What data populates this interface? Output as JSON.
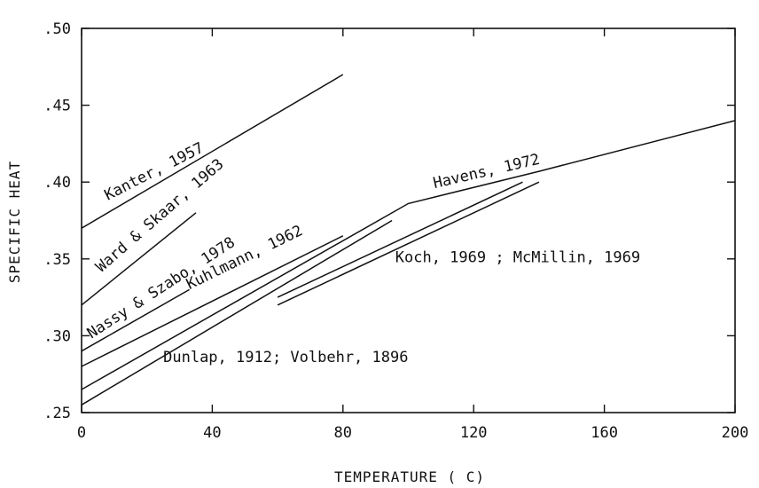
{
  "chart_data": {
    "type": "line",
    "title": "",
    "xlabel": "TEMPERATURE ( C)",
    "ylabel": "SPECIFIC HEAT",
    "xlim": [
      0,
      200
    ],
    "ylim": [
      0.25,
      0.5
    ],
    "x_ticks": [
      {
        "value": 0,
        "label": "0"
      },
      {
        "value": 40,
        "label": "40"
      },
      {
        "value": 80,
        "label": "80"
      },
      {
        "value": 120,
        "label": "120"
      },
      {
        "value": 160,
        "label": "160"
      },
      {
        "value": 200,
        "label": "200"
      }
    ],
    "y_ticks": [
      {
        "value": 0.25,
        "label": ".25"
      },
      {
        "value": 0.3,
        "label": ".30"
      },
      {
        "value": 0.35,
        "label": ".35"
      },
      {
        "value": 0.4,
        "label": ".40"
      },
      {
        "value": 0.45,
        "label": ".45"
      },
      {
        "value": 0.5,
        "label": ".50"
      }
    ],
    "grid": false,
    "legend": "none",
    "line_color": "#111111",
    "series": [
      {
        "name": "Kanter, 1957",
        "x": [
          0,
          80
        ],
        "y": [
          0.37,
          0.47
        ]
      },
      {
        "name": "Ward & Skaar, 1963",
        "x": [
          0,
          35
        ],
        "y": [
          0.32,
          0.38
        ]
      },
      {
        "name": "Nassy & Szabo, 1978",
        "x": [
          0,
          33
        ],
        "y": [
          0.29,
          0.33
        ]
      },
      {
        "name": "Kuhlmann, 1962",
        "x": [
          0,
          80
        ],
        "y": [
          0.28,
          0.365
        ]
      },
      {
        "name": "Havens, 1972",
        "x": [
          0,
          100,
          140,
          200
        ],
        "y": [
          0.265,
          0.386,
          0.407,
          0.44
        ]
      },
      {
        "name": "",
        "x": [
          0,
          95
        ],
        "y": [
          0.255,
          0.375
        ]
      },
      {
        "name": "",
        "x": [
          60,
          135
        ],
        "y": [
          0.325,
          0.4
        ]
      },
      {
        "name": "",
        "x": [
          60,
          140
        ],
        "y": [
          0.32,
          0.4
        ]
      }
    ],
    "annotations": [
      {
        "text": "Kanter, 1957",
        "x": 8,
        "y": 0.388,
        "angle": -27
      },
      {
        "text": "Ward & Skaar, 1963",
        "x": 6,
        "y": 0.341,
        "angle": -41
      },
      {
        "text": "Nassy & Szabo, 1978",
        "x": 3,
        "y": 0.298,
        "angle": -33
      },
      {
        "text": "Kuhlmann, 1962",
        "x": 33,
        "y": 0.33,
        "angle": -26
      },
      {
        "text": "Havens, 1972",
        "x": 108,
        "y": 0.396,
        "angle": -13
      },
      {
        "text": "Koch, 1969 ; McMillin, 1969",
        "x": 96,
        "y": 0.348,
        "angle": 0
      },
      {
        "text": "Dunlap, 1912; Volbehr, 1896",
        "x": 25,
        "y": 0.283,
        "angle": 0
      }
    ]
  }
}
